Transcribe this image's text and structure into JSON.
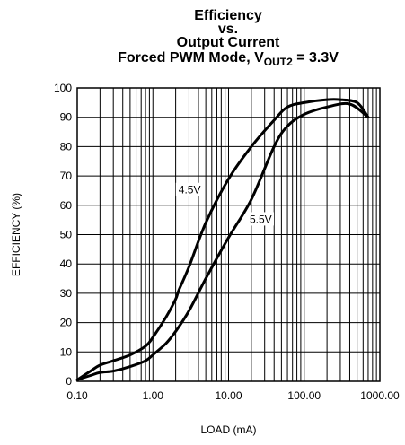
{
  "chart_data": {
    "type": "line",
    "title_lines": [
      "Efficiency",
      "vs.",
      "Output Current"
    ],
    "subtitle": {
      "prefix": "Forced PWM Mode, V",
      "subscript": "OUT2",
      "suffix": " = 3.3V"
    },
    "xlabel": "LOAD (mA)",
    "ylabel": "EFFICIENCY (%)",
    "x_scale": "log",
    "xlim": [
      0.1,
      1000
    ],
    "ylim": [
      0,
      100
    ],
    "x_tick_labels": [
      "0.10",
      "1.00",
      "10.00",
      "100.00",
      "1000.00"
    ],
    "x_ticks": [
      0.1,
      1,
      10,
      100,
      1000
    ],
    "y_ticks": [
      0,
      10,
      20,
      30,
      40,
      50,
      60,
      70,
      80,
      90,
      100
    ],
    "grid": true,
    "series": [
      {
        "name": "4.5V",
        "x": [
          0.1,
          0.15,
          0.2,
          0.3,
          0.5,
          0.8,
          1.0,
          1.5,
          2.0,
          2.2,
          3,
          5,
          10,
          20,
          40,
          60,
          100,
          200,
          300,
          500,
          700
        ],
        "y": [
          0.5,
          3.5,
          5.5,
          7,
          9,
          12,
          15,
          22,
          28,
          31,
          39,
          54,
          69,
          80,
          89,
          93.5,
          95,
          96,
          96,
          95,
          90
        ]
      },
      {
        "name": "5.5V",
        "x": [
          0.1,
          0.15,
          0.2,
          0.3,
          0.5,
          0.8,
          1.0,
          1.5,
          2.0,
          3,
          5,
          10,
          20,
          40,
          60,
          100,
          200,
          400,
          700
        ],
        "y": [
          0.5,
          2,
          3,
          3.5,
          5,
          7,
          9,
          13,
          17,
          24,
          35,
          49,
          62,
          80,
          87,
          91,
          93.5,
          94.5,
          90
        ]
      }
    ]
  }
}
